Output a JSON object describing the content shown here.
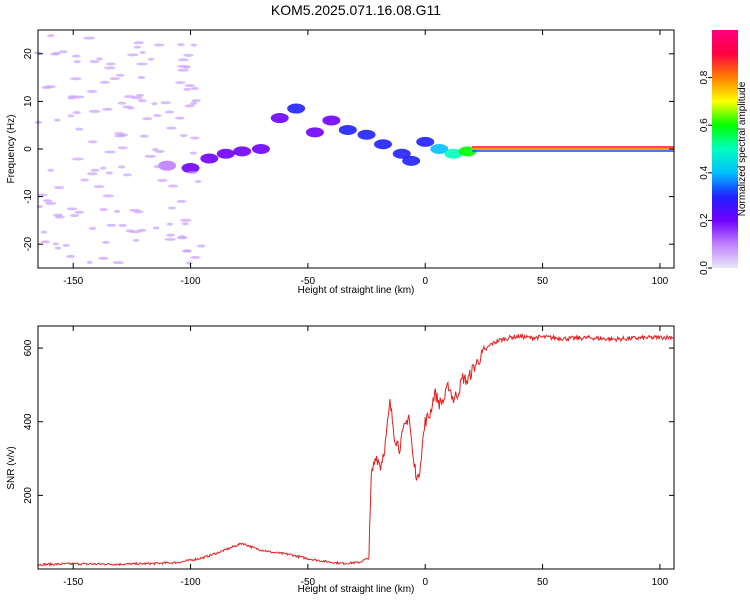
{
  "figure_title": "KOM5.2025.071.16.08.G11",
  "chart_data": [
    {
      "type": "heatmap",
      "title": "KOM5.2025.071.16.08.G11",
      "xlabel": "Height of straight line (km)",
      "ylabel": "Frequency (Hz)",
      "xlim": [
        -165,
        106
      ],
      "ylim": [
        -25,
        25
      ],
      "xticks": [
        -150,
        -100,
        -50,
        0,
        50,
        100
      ],
      "xtick_labels": [
        "-150",
        "-100",
        "-50",
        "0",
        "50",
        "100"
      ],
      "yticks": [
        -20,
        -10,
        0,
        10,
        20
      ],
      "ytick_labels": [
        "-20",
        "-10",
        "0",
        "10",
        "20"
      ],
      "colorbar": {
        "label": "Normalized spectral amplitude",
        "range": [
          0,
          1
        ],
        "ticks": [
          0.0,
          0.2,
          0.4,
          0.6,
          0.8
        ],
        "tick_labels": [
          "0.0",
          "0.2",
          "0.4",
          "0.6",
          "0.8"
        ],
        "colormap": [
          "#e8e8f8",
          "#c080ff",
          "#7000ff",
          "#2020ff",
          "#00c0ff",
          "#00ffc0",
          "#00ff00",
          "#ffff00",
          "#ff8000",
          "#ff0040",
          "#ff0080"
        ]
      },
      "ridge": [
        {
          "x": -110,
          "y": -3.5,
          "v": 0.1
        },
        {
          "x": -100,
          "y": -4.0,
          "v": 0.15
        },
        {
          "x": -92,
          "y": -2.0,
          "v": 0.18
        },
        {
          "x": -85,
          "y": -1.0,
          "v": 0.2
        },
        {
          "x": -78,
          "y": -0.5,
          "v": 0.18
        },
        {
          "x": -70,
          "y": 0.0,
          "v": 0.15
        },
        {
          "x": -62,
          "y": 6.5,
          "v": 0.2
        },
        {
          "x": -55,
          "y": 8.5,
          "v": 0.25
        },
        {
          "x": -47,
          "y": 3.5,
          "v": 0.18
        },
        {
          "x": -40,
          "y": 6.0,
          "v": 0.22
        },
        {
          "x": -33,
          "y": 4.0,
          "v": 0.3
        },
        {
          "x": -25,
          "y": 3.0,
          "v": 0.3
        },
        {
          "x": -18,
          "y": 1.0,
          "v": 0.28
        },
        {
          "x": -10,
          "y": -1.0,
          "v": 0.25
        },
        {
          "x": -6,
          "y": -2.5,
          "v": 0.28
        },
        {
          "x": 0,
          "y": 1.5,
          "v": 0.3
        },
        {
          "x": 6,
          "y": 0.0,
          "v": 0.35
        },
        {
          "x": 12,
          "y": -1.0,
          "v": 0.45
        },
        {
          "x": 18,
          "y": -0.5,
          "v": 0.55
        },
        {
          "x": 24,
          "y": 0.0,
          "v": 0.7
        },
        {
          "x": 40,
          "y": 0.0,
          "v": 0.9
        },
        {
          "x": 60,
          "y": 0.0,
          "v": 0.95
        },
        {
          "x": 80,
          "y": 0.0,
          "v": 0.95
        },
        {
          "x": 106,
          "y": 0.0,
          "v": 0.95
        }
      ]
    },
    {
      "type": "line",
      "xlabel": "Height of straight line (km)",
      "ylabel": "SNR (v/v)",
      "xlim": [
        -165,
        106
      ],
      "ylim": [
        0,
        660
      ],
      "xticks": [
        -150,
        -100,
        -50,
        0,
        50,
        100
      ],
      "xtick_labels": [
        "-150",
        "-100",
        "-50",
        "0",
        "50",
        "100"
      ],
      "yticks": [
        200,
        400,
        600
      ],
      "ytick_labels": [
        "200",
        "400",
        "600"
      ],
      "series": [
        {
          "color": "#e02020",
          "x": [
            -165,
            -150,
            -130,
            -115,
            -105,
            -95,
            -88,
            -82,
            -78,
            -72,
            -65,
            -58,
            -50,
            -42,
            -35,
            -28,
            -24,
            -23,
            -21,
            -19,
            -17,
            -15,
            -13,
            -11,
            -9,
            -7,
            -5,
            -3,
            -1,
            0,
            2,
            4,
            6,
            8,
            10,
            12,
            14,
            16,
            18,
            20,
            22,
            25,
            28,
            31,
            34,
            37,
            40,
            45,
            50,
            60,
            70,
            80,
            90,
            100,
            106
          ],
          "y": [
            12,
            14,
            13,
            15,
            18,
            30,
            45,
            60,
            70,
            55,
            45,
            40,
            28,
            20,
            15,
            18,
            30,
            250,
            310,
            280,
            340,
            450,
            360,
            330,
            380,
            420,
            290,
            240,
            350,
            400,
            420,
            480,
            450,
            460,
            500,
            460,
            480,
            520,
            510,
            540,
            560,
            590,
            610,
            620,
            625,
            630,
            632,
            628,
            630,
            626,
            628,
            624,
            627,
            629,
            630
          ]
        }
      ]
    }
  ]
}
